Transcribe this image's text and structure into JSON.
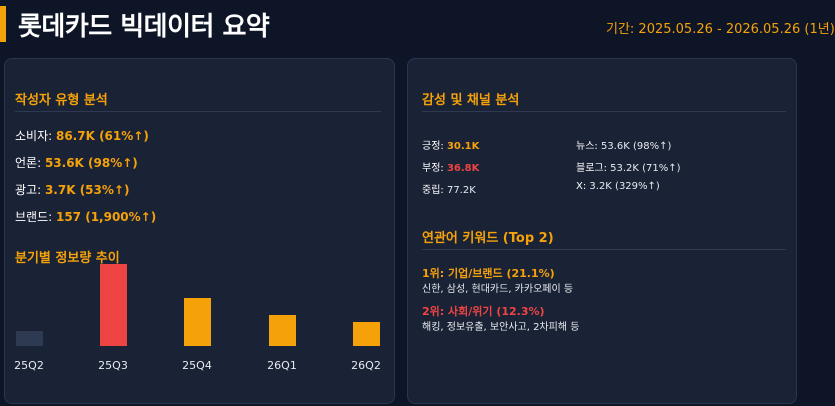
{
  "header": {
    "title": "롯데카드 빅데이터 요약",
    "period": "기간: 2025.05.26 - 2026.05.26 (1년)"
  },
  "left": {
    "author_section": {
      "title": "작성자 유형 분석",
      "items": [
        {
          "label": "소비자: ",
          "value": "86.7K (61%↑)"
        },
        {
          "label": "언론: ",
          "value": "53.6K (98%↑)"
        },
        {
          "label": "광고: ",
          "value": "3.7K (53%↑)"
        },
        {
          "label": "브랜드: ",
          "value": "157 (1,900%↑)"
        }
      ]
    },
    "trend_section": {
      "title": "분기별 정보량 추이"
    }
  },
  "chart_data": {
    "type": "bar",
    "categories": [
      "25Q2",
      "25Q3",
      "25Q4",
      "26Q1",
      "26Q2"
    ],
    "values": [
      15,
      82,
      48,
      31,
      24
    ],
    "colors": [
      "#2d3a52",
      "#ef4444",
      "#f5a20a",
      "#f5a20a",
      "#f5a20a"
    ],
    "ylim": [
      0,
      82
    ],
    "grid": false
  },
  "right": {
    "sentiment_section": {
      "title": "감성 및 채널 분석",
      "sentiment": [
        {
          "label": "긍정: ",
          "value": "30.1K",
          "tone": "pos"
        },
        {
          "label": "부정: ",
          "value": "36.8K",
          "tone": "neg"
        },
        {
          "label": "중립: ",
          "value": "77.2K",
          "tone": "plain"
        }
      ],
      "channels": [
        {
          "label": "뉴스: ",
          "value": "53.6K (98%↑)"
        },
        {
          "label": "블로그: ",
          "value": "53.2K (71%↑)"
        },
        {
          "label": "X: ",
          "value": "3.2K (329%↑)"
        }
      ]
    },
    "keyword_section": {
      "title": "연관어 키워드 (Top 2)",
      "items": [
        {
          "rank_label": "1위: 기업/브랜드 (21.1%)",
          "desc": "신한, 삼성, 현대카드, 카카오페이 등",
          "color": "#f5a20a"
        },
        {
          "rank_label": "2위: 사회/위기 (12.3%)",
          "desc": "해킹, 정보유출, 보안사고, 2차피해 등",
          "color": "#ef4444"
        }
      ]
    }
  }
}
